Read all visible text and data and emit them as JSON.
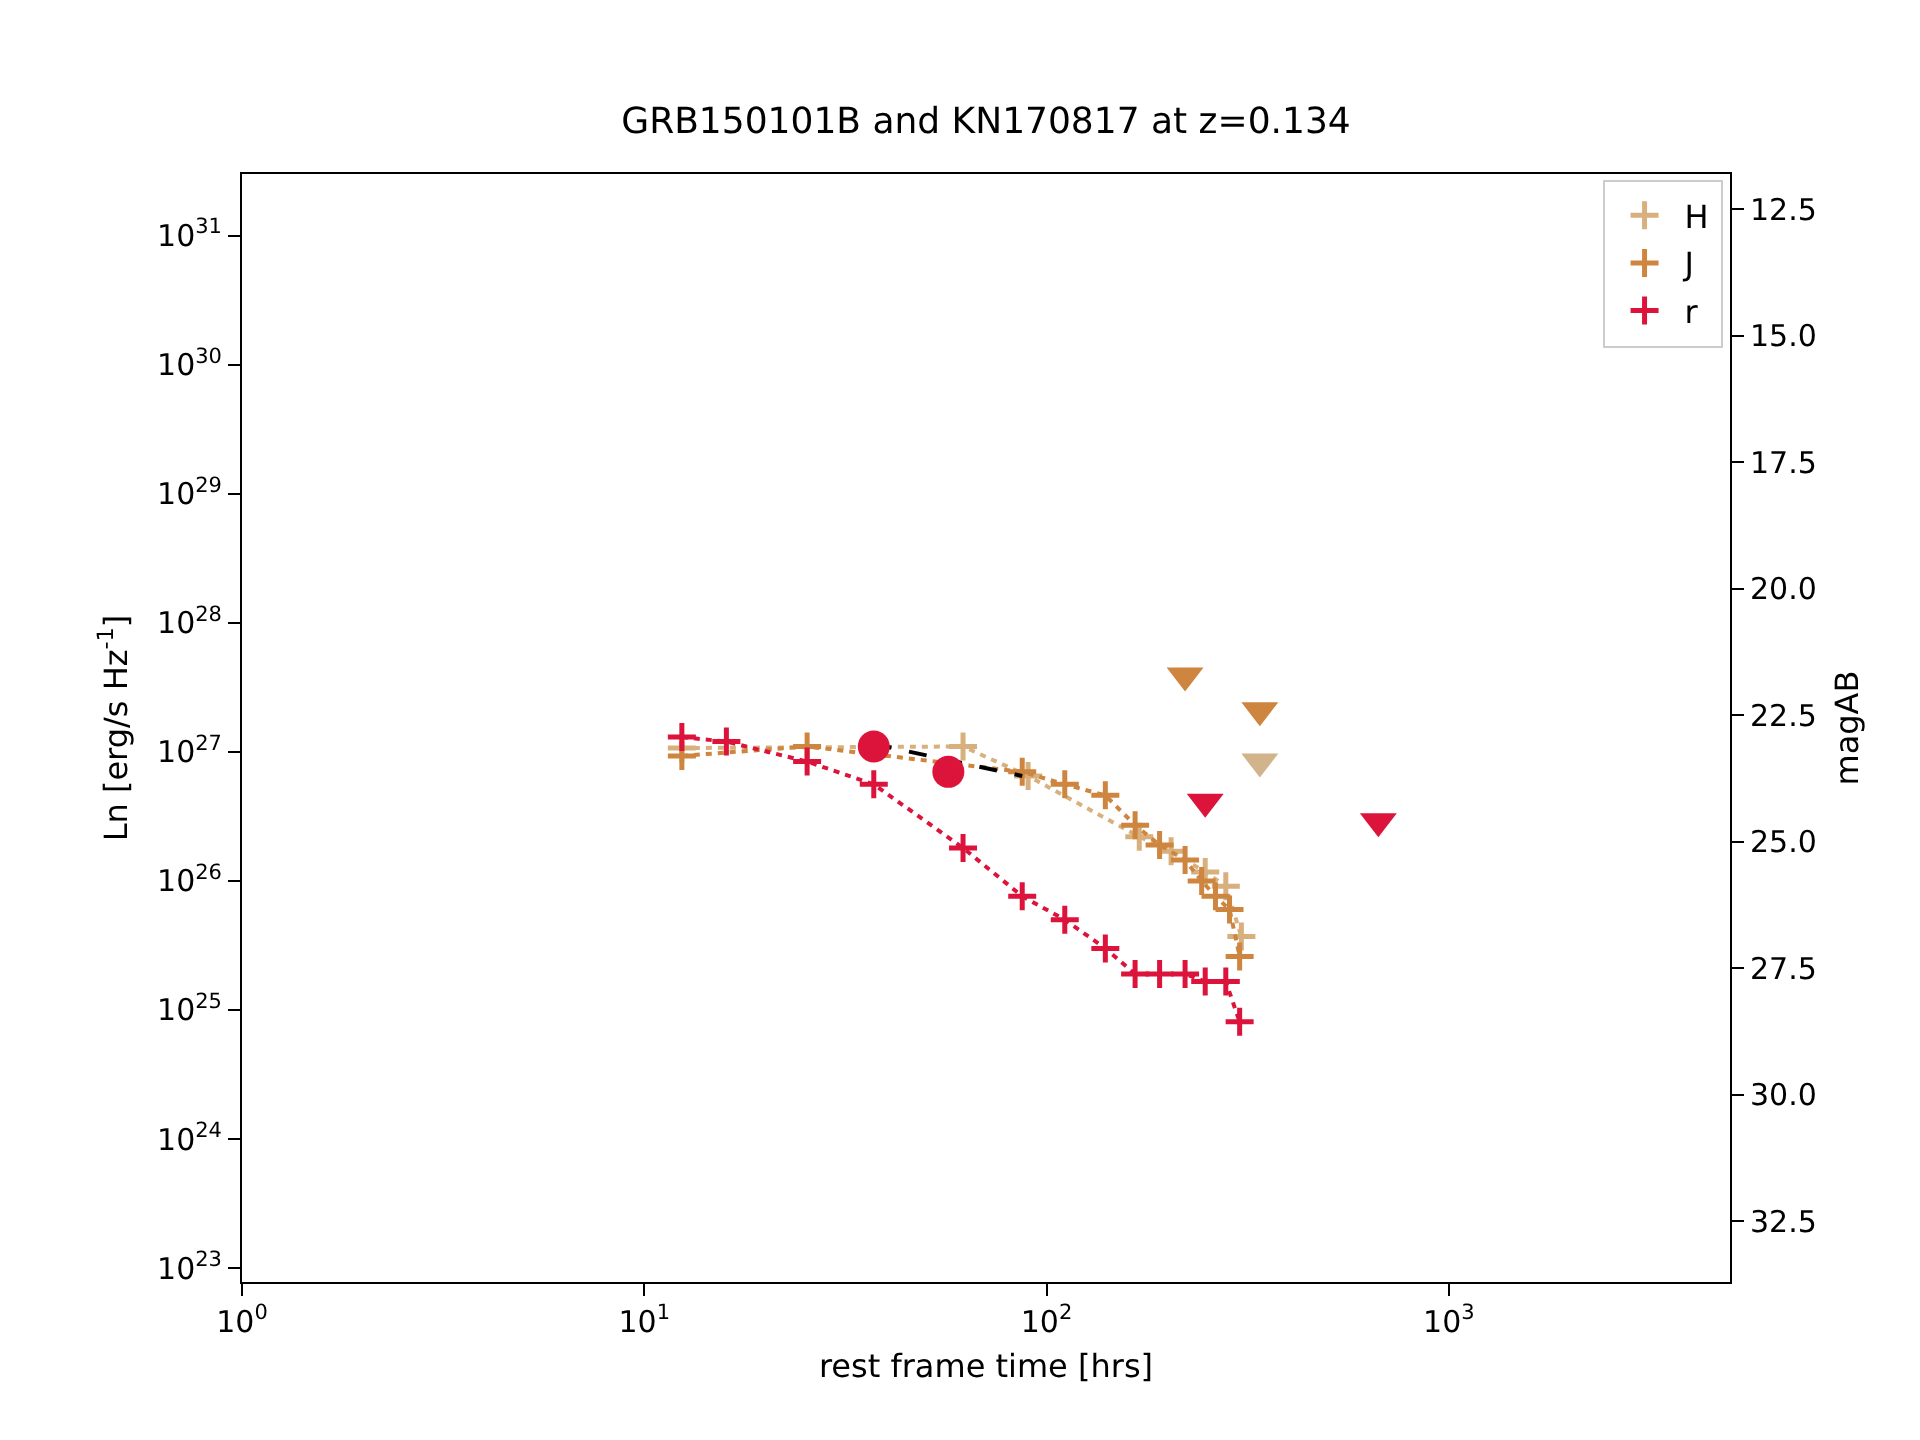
{
  "chart_data": {
    "type": "line",
    "title": "GRB150101B and KN170817 at z=0.134",
    "xlabel": "rest frame time [hrs]",
    "ylabel": "Ln [erg/s Hz$^{-1}$]",
    "y2label": "magAB",
    "log": "xy",
    "xlim": [
      1,
      5000
    ],
    "xticks": [
      {
        "value": 1,
        "label": "10$^{0}$"
      },
      {
        "value": 10,
        "label": "10$^{1}$"
      },
      {
        "value": 100,
        "label": "10$^{2}$"
      },
      {
        "value": 1000,
        "label": "10$^{3}$"
      }
    ],
    "ylim": [
      7.8e+22,
      3e+31
    ],
    "yticks": [
      {
        "value": 1e+23,
        "label": "10$^{23}$"
      },
      {
        "value": 1e+24,
        "label": "10$^{24}$"
      },
      {
        "value": 1e+25,
        "label": "10$^{25}$"
      },
      {
        "value": 1e+26,
        "label": "10$^{26}$"
      },
      {
        "value": 1e+27,
        "label": "10$^{27}$"
      },
      {
        "value": 1e+28,
        "label": "10$^{28}$"
      },
      {
        "value": 1e+29,
        "label": "10$^{29}$"
      },
      {
        "value": 1e+30,
        "label": "10$^{30}$"
      },
      {
        "value": 1e+31,
        "label": "10$^{31}$"
      }
    ],
    "y2lim": [
      33.7,
      11.8
    ],
    "y2ticks": [
      12.5,
      {
        "value": 15,
        "label": "15.0"
      },
      17.5,
      {
        "value": 20,
        "label": "20.0"
      },
      22.5,
      {
        "value": 25,
        "label": "25.0"
      },
      27.5,
      {
        "value": 30,
        "label": "30.0"
      },
      32.5
    ],
    "grid": false,
    "legend": "top right",
    "series": [
      {
        "name": "H",
        "color": "#d8b07e",
        "marker": "cross",
        "line_style": "dotted",
        "x": [
          12.4,
          62,
          90,
          170,
          204,
          248,
          279,
          305
        ],
        "values": [
          1.07e+27,
          1.1e+27,
          6.5e+26,
          2.2e+26,
          1.7e+26,
          1.17e+26,
          9.1e+25,
          3.7e+25
        ]
      },
      {
        "name": "J",
        "color": "#cd853f",
        "marker": "cross",
        "line_style": "dotted",
        "x": [
          12.4,
          25.4,
          87,
          111,
          140,
          166,
          191,
          221,
          243,
          263,
          285,
          302
        ],
        "values": [
          9.3e+26,
          1.1e+27,
          7e+26,
          5.6e+26,
          4.6e+26,
          2.7e+26,
          1.9e+26,
          1.45e+26,
          1e+26,
          7.6e+25,
          6e+25,
          2.6e+25
        ]
      },
      {
        "name": "r",
        "color": "#dc143c",
        "marker": "cross",
        "line_style": "dotted",
        "x": [
          12.4,
          16.0,
          25.4,
          37.2,
          62,
          87,
          111,
          140,
          166,
          191,
          221,
          248,
          279,
          302
        ],
        "values": [
          1.3e+27,
          1.2e+27,
          8.4e+26,
          5.6e+26,
          1.8e+26,
          7.6e+25,
          5e+25,
          3e+25,
          1.9e+25,
          1.9e+25,
          1.9e+25,
          1.66e+25,
          1.66e+25,
          8.1e+24
        ]
      },
      {
        "type": "line",
        "color": "#000000",
        "marker": "none",
        "line_style": "dashed",
        "x": [
          37.2,
          87
        ],
        "values": [
          1.15e+27,
          6.5e+26
        ]
      },
      {
        "type": "scatter",
        "color": "#dc143c",
        "marker": "circle",
        "x": [
          37.2,
          57
        ],
        "values": [
          1.1e+27,
          7e+26
        ]
      },
      {
        "type": "scatter",
        "color": "#cd853f",
        "marker": "triangle",
        "x": [
          221,
          339
        ],
        "values": [
          3.9e+27,
          2.1e+27
        ]
      },
      {
        "type": "scatter",
        "color": "#d2b48c",
        "marker": "triangle",
        "x": [
          339
        ],
        "values": [
          8.4e+26
        ]
      },
      {
        "type": "scatter",
        "color": "#dc143c",
        "marker": "triangle",
        "x": [
          248,
          668
        ],
        "values": [
          4.1e+26,
          2.9e+26
        ]
      }
    ]
  }
}
